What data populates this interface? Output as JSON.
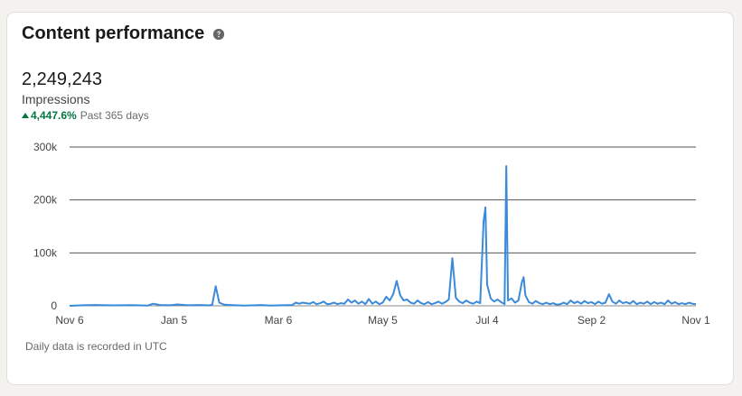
{
  "card": {
    "title": "Content performance",
    "help_icon": "question-circle-icon",
    "metric_value": "2,249,243",
    "metric_label": "Impressions",
    "change": "4,447.6%",
    "change_icon": "caret-up-icon",
    "period": "Past 365 days",
    "footnote": "Daily data is recorded in UTC"
  },
  "colors": {
    "line": "#3b8ad9",
    "positive": "#057642"
  },
  "chart_data": {
    "type": "line",
    "title": "",
    "xlabel": "",
    "ylabel": "",
    "x_ticks": [
      "Nov 6",
      "Jan 5",
      "Mar 6",
      "May 5",
      "Jul 4",
      "Sep 2",
      "Nov 1"
    ],
    "y_ticks": [
      "0",
      "100k",
      "200k",
      "300k"
    ],
    "ylim": [
      0,
      300000
    ],
    "x_range_days": [
      0,
      360
    ],
    "grid": true,
    "series": [
      {
        "name": "",
        "points": [
          [
            0,
            0
          ],
          [
            8,
            1000
          ],
          [
            15,
            1500
          ],
          [
            25,
            800
          ],
          [
            35,
            1200
          ],
          [
            45,
            500
          ],
          [
            48,
            4000
          ],
          [
            52,
            1500
          ],
          [
            58,
            1000
          ],
          [
            62,
            2500
          ],
          [
            68,
            1000
          ],
          [
            75,
            1500
          ],
          [
            80,
            800
          ],
          [
            82,
            1800
          ],
          [
            84,
            37000
          ],
          [
            86,
            6000
          ],
          [
            89,
            2000
          ],
          [
            95,
            1000
          ],
          [
            100,
            500
          ],
          [
            105,
            800
          ],
          [
            110,
            1500
          ],
          [
            115,
            500
          ],
          [
            120,
            800
          ],
          [
            125,
            1200
          ],
          [
            128,
            1500
          ],
          [
            130,
            6000
          ],
          [
            132,
            4000
          ],
          [
            134,
            6000
          ],
          [
            136,
            5000
          ],
          [
            138,
            4000
          ],
          [
            140,
            7000
          ],
          [
            142,
            3000
          ],
          [
            144,
            5000
          ],
          [
            146,
            8000
          ],
          [
            148,
            3000
          ],
          [
            150,
            4000
          ],
          [
            152,
            6000
          ],
          [
            154,
            3000
          ],
          [
            156,
            5000
          ],
          [
            158,
            4000
          ],
          [
            160,
            12000
          ],
          [
            162,
            6000
          ],
          [
            164,
            10000
          ],
          [
            166,
            4000
          ],
          [
            168,
            8000
          ],
          [
            170,
            3000
          ],
          [
            172,
            13000
          ],
          [
            174,
            4000
          ],
          [
            176,
            8000
          ],
          [
            178,
            3000
          ],
          [
            180,
            6000
          ],
          [
            182,
            17000
          ],
          [
            184,
            10000
          ],
          [
            186,
            22000
          ],
          [
            188,
            47000
          ],
          [
            190,
            20000
          ],
          [
            192,
            10000
          ],
          [
            194,
            12000
          ],
          [
            196,
            6000
          ],
          [
            198,
            4000
          ],
          [
            200,
            10000
          ],
          [
            202,
            5000
          ],
          [
            204,
            3000
          ],
          [
            206,
            7000
          ],
          [
            208,
            3000
          ],
          [
            210,
            5000
          ],
          [
            212,
            8000
          ],
          [
            214,
            4000
          ],
          [
            216,
            7000
          ],
          [
            218,
            12000
          ],
          [
            220,
            90000
          ],
          [
            222,
            15000
          ],
          [
            224,
            8000
          ],
          [
            226,
            5000
          ],
          [
            228,
            10000
          ],
          [
            230,
            6000
          ],
          [
            232,
            4000
          ],
          [
            234,
            8000
          ],
          [
            236,
            5000
          ],
          [
            238,
            160000
          ],
          [
            239,
            186000
          ],
          [
            240,
            40000
          ],
          [
            242,
            14000
          ],
          [
            244,
            8000
          ],
          [
            246,
            12000
          ],
          [
            248,
            7000
          ],
          [
            250,
            3000
          ],
          [
            251,
            264000
          ],
          [
            252,
            10000
          ],
          [
            254,
            14000
          ],
          [
            256,
            6000
          ],
          [
            258,
            10000
          ],
          [
            260,
            45000
          ],
          [
            261,
            54000
          ],
          [
            262,
            20000
          ],
          [
            264,
            7000
          ],
          [
            266,
            4000
          ],
          [
            268,
            9000
          ],
          [
            270,
            5000
          ],
          [
            272,
            3000
          ],
          [
            274,
            6000
          ],
          [
            276,
            3000
          ],
          [
            278,
            5000
          ],
          [
            280,
            2000
          ],
          [
            282,
            3000
          ],
          [
            284,
            6000
          ],
          [
            286,
            3000
          ],
          [
            288,
            10000
          ],
          [
            290,
            5000
          ],
          [
            292,
            8000
          ],
          [
            294,
            4000
          ],
          [
            296,
            9000
          ],
          [
            298,
            5000
          ],
          [
            300,
            7000
          ],
          [
            302,
            3000
          ],
          [
            304,
            8000
          ],
          [
            306,
            4000
          ],
          [
            308,
            6000
          ],
          [
            310,
            22000
          ],
          [
            312,
            8000
          ],
          [
            314,
            4000
          ],
          [
            316,
            10000
          ],
          [
            318,
            5000
          ],
          [
            320,
            7000
          ],
          [
            322,
            4000
          ],
          [
            324,
            9000
          ],
          [
            326,
            3000
          ],
          [
            328,
            6000
          ],
          [
            330,
            4000
          ],
          [
            332,
            8000
          ],
          [
            334,
            3000
          ],
          [
            336,
            7000
          ],
          [
            338,
            4000
          ],
          [
            340,
            6000
          ],
          [
            342,
            3000
          ],
          [
            344,
            10000
          ],
          [
            346,
            4000
          ],
          [
            348,
            7000
          ],
          [
            350,
            3000
          ],
          [
            352,
            5000
          ],
          [
            354,
            3000
          ],
          [
            356,
            6000
          ],
          [
            358,
            4000
          ],
          [
            360,
            3000
          ]
        ]
      }
    ]
  }
}
